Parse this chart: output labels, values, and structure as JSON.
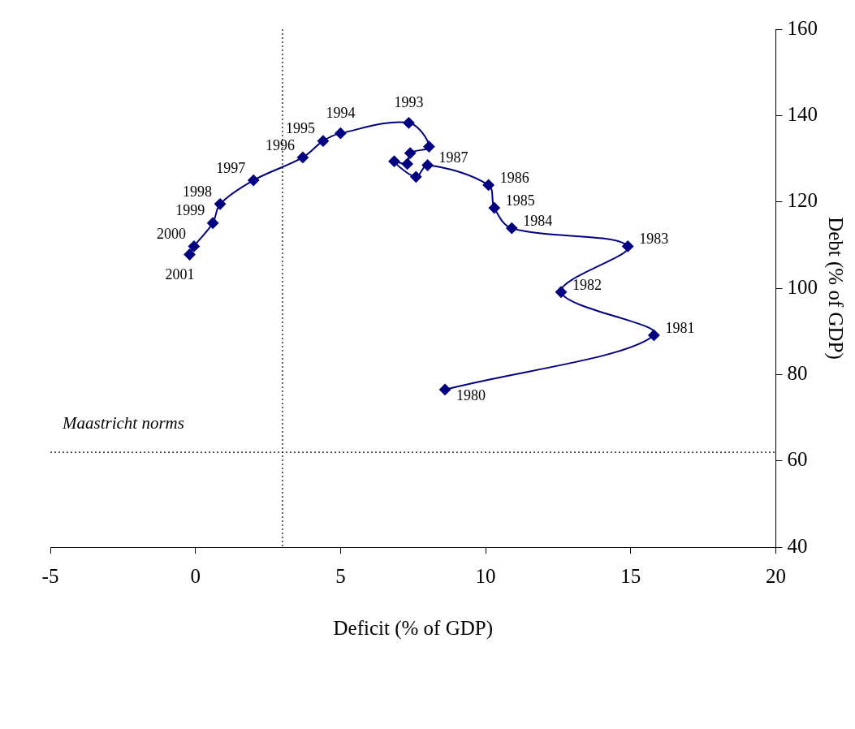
{
  "chart_data": {
    "type": "scatter",
    "xlabel": "Deficit (% of GDP)",
    "ylabel": "Debt (% of GDP)",
    "xlim": [
      -5,
      20
    ],
    "xticks": [
      -5,
      0,
      5,
      10,
      15,
      20
    ],
    "ylim": [
      40,
      160
    ],
    "yticks": [
      40,
      60,
      80,
      100,
      120,
      140,
      160
    ],
    "grid": false,
    "legend": false,
    "marker": "diamond",
    "line_style": "solid",
    "series": [
      {
        "type": "line",
        "color": "#000080",
        "x": [
          8.6,
          15.8,
          12.6,
          14.9,
          10.9,
          10.3,
          10.1,
          8.0,
          7.6,
          6.85,
          7.3,
          7.4,
          8.05,
          7.35,
          5.0,
          4.4,
          3.7,
          2.0,
          0.85,
          0.6,
          -0.05,
          -0.2
        ],
        "values": [
          76.5,
          89.1,
          99.1,
          109.7,
          113.9,
          118.6,
          123.9,
          128.5,
          125.8,
          129.4,
          128.8,
          131.3,
          132.8,
          138.3,
          135.9,
          134.1,
          130.3,
          125.0,
          119.5,
          115.1,
          109.7,
          107.8
        ]
      }
    ],
    "ref_lines": [
      {
        "axis": "x",
        "value": 3,
        "line_style": "dotted",
        "color": "#000000"
      },
      {
        "axis": "y",
        "value": 62,
        "line_style": "dotted",
        "color": "#000000"
      }
    ],
    "annotations": [
      {
        "text": "1980",
        "x": 8.6,
        "y": 76.5
      },
      {
        "text": "1981",
        "x": 15.8,
        "y": 89.1
      },
      {
        "text": "1982",
        "x": 12.6,
        "y": 99.1
      },
      {
        "text": "1983",
        "x": 14.9,
        "y": 109.7
      },
      {
        "text": "1984",
        "x": 10.9,
        "y": 113.9
      },
      {
        "text": "1985",
        "x": 10.3,
        "y": 118.6
      },
      {
        "text": "1986",
        "x": 10.1,
        "y": 123.9
      },
      {
        "text": "1987",
        "x": 8.0,
        "y": 128.5
      },
      {
        "text": "1993",
        "x": 7.35,
        "y": 138.3
      },
      {
        "text": "1994",
        "x": 5.0,
        "y": 135.9
      },
      {
        "text": "1995",
        "x": 4.4,
        "y": 134.1
      },
      {
        "text": "1996",
        "x": 3.7,
        "y": 130.3
      },
      {
        "text": "1997",
        "x": 2.0,
        "y": 125.0
      },
      {
        "text": "1998",
        "x": 0.85,
        "y": 119.5
      },
      {
        "text": "1999",
        "x": 0.6,
        "y": 115.1
      },
      {
        "text": "2000",
        "x": -0.05,
        "y": 109.7
      },
      {
        "text": "2001",
        "x": -0.2,
        "y": 107.8
      },
      "Maastricht norms"
    ]
  }
}
